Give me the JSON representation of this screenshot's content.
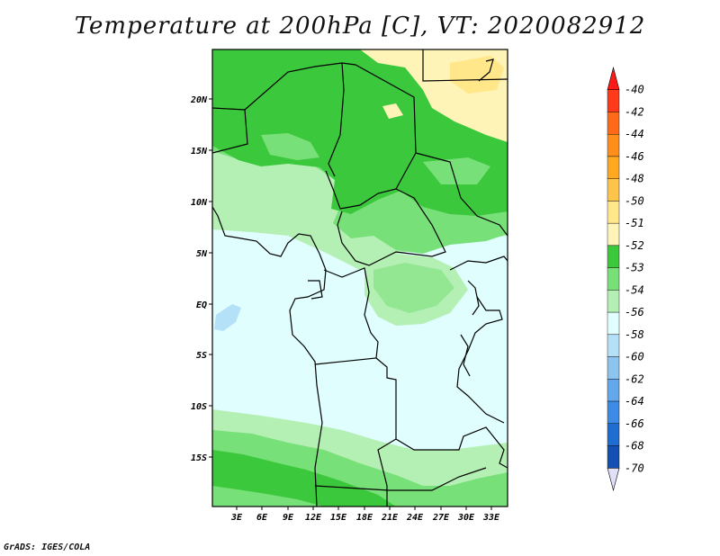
{
  "title": "Temperature at 200hPa [C], VT: 2020082912",
  "credit": "GrADS: IGES/COLA",
  "axes": {
    "lat_labels": [
      "20N",
      "15N",
      "10N",
      "5N",
      "EQ",
      "5S",
      "10S",
      "15S"
    ],
    "lon_labels": [
      "3E",
      "6E",
      "9E",
      "12E",
      "15E",
      "18E",
      "21E",
      "24E",
      "27E",
      "30E",
      "33E"
    ]
  },
  "legend": {
    "levels": [
      {
        "label": "-40",
        "color": "#ff3a1a"
      },
      {
        "label": "-42",
        "color": "#ff6a1a"
      },
      {
        "label": "-44",
        "color": "#ff8f1a"
      },
      {
        "label": "-46",
        "color": "#ffa822"
      },
      {
        "label": "-48",
        "color": "#ffc44a"
      },
      {
        "label": "-50",
        "color": "#ffe78a"
      },
      {
        "label": "-51",
        "color": "#fff4b8"
      },
      {
        "label": "-52",
        "color": "#3cc83c"
      },
      {
        "label": "-53",
        "color": "#78e078"
      },
      {
        "label": "-54",
        "color": "#b4f0b4"
      },
      {
        "label": "-56",
        "color": "#e0fefe"
      },
      {
        "label": "-58",
        "color": "#b4e0f8"
      },
      {
        "label": "-60",
        "color": "#8cc4f0"
      },
      {
        "label": "-62",
        "color": "#64a8ec"
      },
      {
        "label": "-64",
        "color": "#3c8ce6"
      },
      {
        "label": "-66",
        "color": "#1e6ed2"
      },
      {
        "label": "-68",
        "color": "#1450b4"
      },
      {
        "label": "-70",
        "color": "#0a2882"
      }
    ],
    "below_color": "#e0e0f8",
    "above_color": "#ff1a1a"
  }
}
